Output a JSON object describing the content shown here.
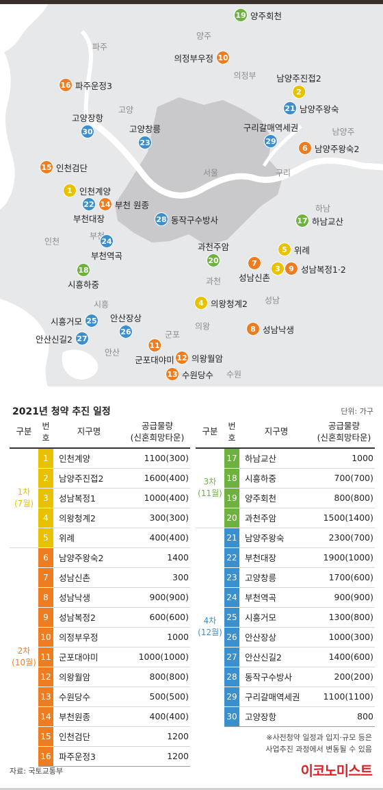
{
  "colors": {
    "phase1": "#e8c200",
    "phase2": "#ee7d22",
    "phase3": "#6db23f",
    "phase4": "#3a8fcf",
    "seoul": "#c9c9cb",
    "land": "#e7e8ea",
    "water": "#ffffff",
    "logo": "#d92127"
  },
  "map": {
    "regions": [
      "양주",
      "파주",
      "의정부",
      "고양",
      "남양주",
      "서울",
      "구리",
      "하남",
      "인천",
      "부천",
      "과천",
      "시흥",
      "성남",
      "의왕",
      "군포",
      "안산",
      "수원"
    ],
    "markers": [
      {
        "no": "19",
        "name": "양주회천",
        "phase": "phase3",
        "side": "right"
      },
      {
        "no": "10",
        "name": "의정부우정",
        "phase": "phase2",
        "side": "left"
      },
      {
        "no": "2",
        "name": "남양주진접2",
        "phase": "phase1",
        "side": "top"
      },
      {
        "no": "16",
        "name": "파주운정3",
        "phase": "phase2",
        "side": "right"
      },
      {
        "no": "21",
        "name": "남양주왕숙",
        "phase": "phase4",
        "side": "right"
      },
      {
        "no": "30",
        "name": "고양장항",
        "phase": "phase4",
        "side": "top"
      },
      {
        "no": "23",
        "name": "고양창릉",
        "phase": "phase4",
        "side": "top"
      },
      {
        "no": "29",
        "name": "구리갈매역세권",
        "phase": "phase4",
        "side": "top"
      },
      {
        "no": "6",
        "name": "남양주왕숙2",
        "phase": "phase2",
        "side": "right"
      },
      {
        "no": "15",
        "name": "인천검단",
        "phase": "phase2",
        "side": "right"
      },
      {
        "no": "1",
        "name": "인천계양",
        "phase": "phase1",
        "side": "right"
      },
      {
        "no": "22",
        "name": "부천대장",
        "phase": "phase4",
        "side": "bottom"
      },
      {
        "no": "14",
        "name": "부천 원종",
        "phase": "phase2",
        "side": "right"
      },
      {
        "no": "28",
        "name": "동작구수방사",
        "phase": "phase4",
        "side": "right"
      },
      {
        "no": "17",
        "name": "하남교산",
        "phase": "phase3",
        "side": "right"
      },
      {
        "no": "24",
        "name": "부천역곡",
        "phase": "phase4",
        "side": "bottom"
      },
      {
        "no": "20",
        "name": "과천주암",
        "phase": "phase3",
        "side": "top"
      },
      {
        "no": "5",
        "name": "위례",
        "phase": "phase1",
        "side": "right"
      },
      {
        "no": "18",
        "name": "시흥하중",
        "phase": "phase3",
        "side": "bottom"
      },
      {
        "no": "7",
        "name": "성남신촌",
        "phase": "phase2",
        "side": "bottom"
      },
      {
        "no": "3",
        "name": "",
        "phase": "phase1",
        "side": "none"
      },
      {
        "no": "9",
        "name": "성남복정1·2",
        "phase": "phase2",
        "side": "right"
      },
      {
        "no": "4",
        "name": "의왕청계2",
        "phase": "phase1",
        "side": "right"
      },
      {
        "no": "25",
        "name": "시흥거모",
        "phase": "phase4",
        "side": "left"
      },
      {
        "no": "26",
        "name": "안산장상",
        "phase": "phase4",
        "side": "top"
      },
      {
        "no": "27",
        "name": "안산신길2",
        "phase": "phase4",
        "side": "left"
      },
      {
        "no": "8",
        "name": "성남낙생",
        "phase": "phase2",
        "side": "right"
      },
      {
        "no": "11",
        "name": "군포대야미",
        "phase": "phase2",
        "side": "bottom"
      },
      {
        "no": "12",
        "name": "의왕월암",
        "phase": "phase2",
        "side": "right"
      },
      {
        "no": "13",
        "name": "수원당수",
        "phase": "phase2",
        "side": "right"
      }
    ]
  },
  "table": {
    "title": "2021년 청약 추진 일정",
    "unit": "단위: 가구",
    "headers": {
      "group": "구분",
      "no": "번호",
      "name": "지구명",
      "supply1": "공급물량",
      "supply2": "(신혼희망타운)"
    },
    "left": [
      {
        "label1": "1차",
        "label2": "(7월)",
        "phase": "phase1",
        "rows": [
          {
            "no": "1",
            "name": "인천계양",
            "supply": "1100(300)"
          },
          {
            "no": "2",
            "name": "남양주진접2",
            "supply": "1600(400)"
          },
          {
            "no": "3",
            "name": "성남복정1",
            "supply": "1000(400)"
          },
          {
            "no": "4",
            "name": "의왕청계2",
            "supply": "300(300)"
          },
          {
            "no": "5",
            "name": "위례",
            "supply": "400(400)"
          }
        ]
      },
      {
        "label1": "2차",
        "label2": "(10월)",
        "phase": "phase2",
        "rows": [
          {
            "no": "6",
            "name": "남양주왕숙2",
            "supply": "1400"
          },
          {
            "no": "7",
            "name": "성남신촌",
            "supply": "300"
          },
          {
            "no": "8",
            "name": "성남낙생",
            "supply": "900(900)"
          },
          {
            "no": "9",
            "name": "성남복정2",
            "supply": "600(600)"
          },
          {
            "no": "10",
            "name": "의정부우정",
            "supply": "1000"
          },
          {
            "no": "11",
            "name": "군포대야미",
            "supply": "1000(1000)"
          },
          {
            "no": "12",
            "name": "의왕월암",
            "supply": "800(800)"
          },
          {
            "no": "13",
            "name": "수원당수",
            "supply": "500(500)"
          },
          {
            "no": "14",
            "name": "부천원종",
            "supply": "400(400)"
          },
          {
            "no": "15",
            "name": "인천검단",
            "supply": "1200"
          },
          {
            "no": "16",
            "name": "파주운정3",
            "supply": "1200"
          }
        ]
      }
    ],
    "right": [
      {
        "label1": "3차",
        "label2": "(11월)",
        "phase": "phase3",
        "rows": [
          {
            "no": "17",
            "name": "하남교산",
            "supply": "1000"
          },
          {
            "no": "18",
            "name": "시흥하중",
            "supply": "700(700)"
          },
          {
            "no": "19",
            "name": "양주회천",
            "supply": "800(800)"
          },
          {
            "no": "20",
            "name": "과천주암",
            "supply": "1500(1400)"
          }
        ]
      },
      {
        "label1": "4차",
        "label2": "(12월)",
        "phase": "phase4",
        "rows": [
          {
            "no": "21",
            "name": "남양주왕숙",
            "supply": "2300(700)"
          },
          {
            "no": "22",
            "name": "부천대장",
            "supply": "1900(1000)"
          },
          {
            "no": "23",
            "name": "고양창릉",
            "supply": "1700(600)"
          },
          {
            "no": "24",
            "name": "부천역곡",
            "supply": "900(900)"
          },
          {
            "no": "25",
            "name": "시흥거모",
            "supply": "1300(800)"
          },
          {
            "no": "26",
            "name": "안산장상",
            "supply": "1000(300)"
          },
          {
            "no": "27",
            "name": "안산신길2",
            "supply": "1400(600)"
          },
          {
            "no": "28",
            "name": "동작구수방사",
            "supply": "200(200)"
          },
          {
            "no": "29",
            "name": "구리갈매역세권",
            "supply": "1100(1100)"
          },
          {
            "no": "30",
            "name": "고양장항",
            "supply": "800"
          }
        ]
      }
    ],
    "note1": "※사전청약 일정과 입지·규모 등은",
    "note2": "사업추진 과정에서 변동될 수 있음",
    "source": "자료: 국토교통부",
    "logo": "이코노미스트"
  }
}
